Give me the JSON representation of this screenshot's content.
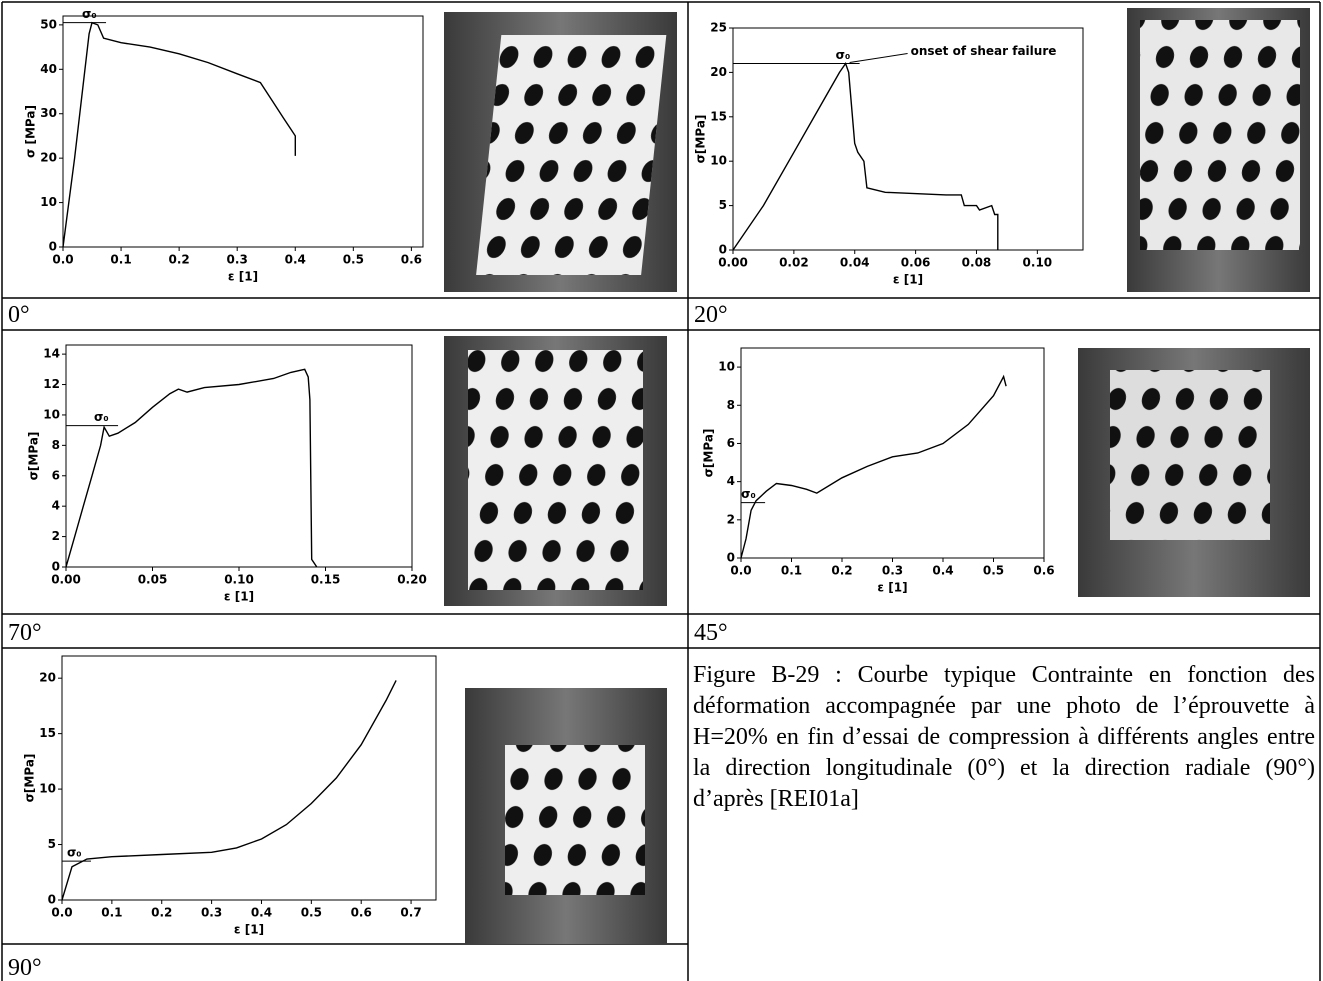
{
  "panels": [
    {
      "label": "0°",
      "chart": {
        "type": "line",
        "ylabel": "σ [MPa]",
        "xlabel": "ε [1]",
        "xlim": [
          0,
          0.62
        ],
        "ylim": [
          0,
          52
        ],
        "xticks": [
          {
            "value": 0,
            "label": "0.0"
          },
          0.1,
          0.2,
          0.3,
          0.4,
          0.5,
          0.6
        ],
        "yticks": [
          0,
          10,
          20,
          30,
          40,
          50
        ],
        "x": [
          0,
          0.02,
          0.045,
          0.05,
          0.06,
          0.07,
          0.1,
          0.15,
          0.2,
          0.25,
          0.3,
          0.34,
          0.36,
          0.38,
          0.395,
          0.4,
          0.4
        ],
        "values": [
          0,
          20,
          48,
          50.5,
          50,
          47,
          46,
          45,
          43.5,
          41.5,
          39,
          37,
          33,
          29,
          26,
          25,
          20.5
        ],
        "marker": {
          "label": "σ₀",
          "x": 0.05,
          "y": 50.5
        }
      }
    },
    {
      "label": "20°",
      "chart": {
        "type": "line",
        "ylabel": "σ[MPa]",
        "xlabel": "ε [1]",
        "xlim": [
          0,
          0.115
        ],
        "ylim": [
          0,
          25
        ],
        "xticks": [
          {
            "value": 0,
            "label": "0.00"
          },
          0.02,
          0.04,
          0.06,
          0.08,
          {
            "value": 0.1,
            "label": "0.10"
          }
        ],
        "yticks": [
          0,
          5,
          10,
          15,
          20,
          25
        ],
        "x": [
          0,
          0.01,
          0.02,
          0.03,
          0.035,
          0.037,
          0.038,
          0.04,
          0.041,
          0.043,
          0.044,
          0.05,
          0.07,
          0.075,
          0.076,
          0.08,
          0.081,
          0.085,
          0.086,
          0.087,
          0.087
        ],
        "values": [
          0,
          5,
          11,
          17,
          20,
          21,
          20,
          12,
          11,
          10,
          7,
          6.5,
          6.2,
          6.2,
          5,
          5,
          4.5,
          5,
          4,
          4,
          0
        ],
        "marker": {
          "label": "σ₀",
          "x": 0.037,
          "y": 21
        },
        "annotation": "onset of shear failure"
      }
    },
    {
      "label": "70°",
      "chart": {
        "type": "line",
        "ylabel": "σ[MPa]",
        "xlabel": "ε [1]",
        "xlim": [
          0,
          0.2
        ],
        "ylim": [
          0,
          14.6
        ],
        "xticks": [
          {
            "value": 0,
            "label": "0.00"
          },
          0.05,
          {
            "value": 0.1,
            "label": "0.10"
          },
          0.15,
          {
            "value": 0.2,
            "label": "0.20"
          }
        ],
        "yticks": [
          0,
          2,
          4,
          6,
          8,
          10,
          12,
          14
        ],
        "x": [
          0,
          0.005,
          0.01,
          0.015,
          0.02,
          0.022,
          0.025,
          0.03,
          0.04,
          0.05,
          0.06,
          0.065,
          0.07,
          0.08,
          0.1,
          0.12,
          0.13,
          0.138,
          0.14,
          0.141,
          0.142,
          0.145
        ],
        "values": [
          0,
          2,
          4,
          6,
          8,
          9.2,
          8.6,
          8.8,
          9.5,
          10.5,
          11.4,
          11.7,
          11.5,
          11.8,
          12,
          12.4,
          12.8,
          13,
          12.5,
          11,
          0.5,
          0
        ],
        "marker": {
          "label": "σ₀",
          "x": 0.022,
          "y": 9.3
        }
      }
    },
    {
      "label": "45°",
      "chart": {
        "type": "line",
        "ylabel": "σ[MPa]",
        "xlabel": "ε [1]",
        "xlim": [
          0,
          0.6
        ],
        "ylim": [
          0,
          11
        ],
        "xticks": [
          {
            "value": 0,
            "label": "0.0"
          },
          0.1,
          0.2,
          0.3,
          0.4,
          0.5,
          0.6
        ],
        "yticks": [
          0,
          2,
          4,
          6,
          8,
          10
        ],
        "x": [
          0,
          0.01,
          0.02,
          0.03,
          0.05,
          0.07,
          0.1,
          0.13,
          0.15,
          0.2,
          0.25,
          0.3,
          0.35,
          0.4,
          0.45,
          0.5,
          0.52,
          0.525
        ],
        "values": [
          0,
          1,
          2.5,
          3,
          3.5,
          3.9,
          3.8,
          3.6,
          3.4,
          4.2,
          4.8,
          5.3,
          5.5,
          6,
          7,
          8.5,
          9.5,
          9
        ],
        "marker": {
          "label": "σ₀",
          "x": 0.02,
          "y": 2.9
        }
      }
    },
    {
      "label": "90°",
      "chart": {
        "type": "line",
        "ylabel": "σ[MPa]",
        "xlabel": "ε [1]",
        "xlim": [
          0,
          0.75
        ],
        "ylim": [
          0,
          22
        ],
        "xticks": [
          {
            "value": 0,
            "label": "0.0"
          },
          0.1,
          0.2,
          0.3,
          0.4,
          0.5,
          0.6,
          0.7
        ],
        "yticks": [
          0,
          5,
          10,
          15,
          20
        ],
        "x": [
          0,
          0.02,
          0.05,
          0.1,
          0.2,
          0.3,
          0.35,
          0.4,
          0.45,
          0.5,
          0.55,
          0.6,
          0.65,
          0.67
        ],
        "values": [
          0,
          3,
          3.7,
          3.9,
          4.1,
          4.3,
          4.7,
          5.5,
          6.8,
          8.7,
          11,
          14,
          18,
          19.8
        ],
        "marker": {
          "label": "σ₀",
          "x": 0.03,
          "y": 3.5
        }
      }
    }
  ],
  "caption": "Figure B-29 : Courbe typique Contrainte en fonction des déformation accompagnée par une photo de l’éprouvette à H=20% en fin d’essai de compression à différents angles entre la direction longitudinale (0°) et la direction radiale (90°) d’après [REI01a]"
}
